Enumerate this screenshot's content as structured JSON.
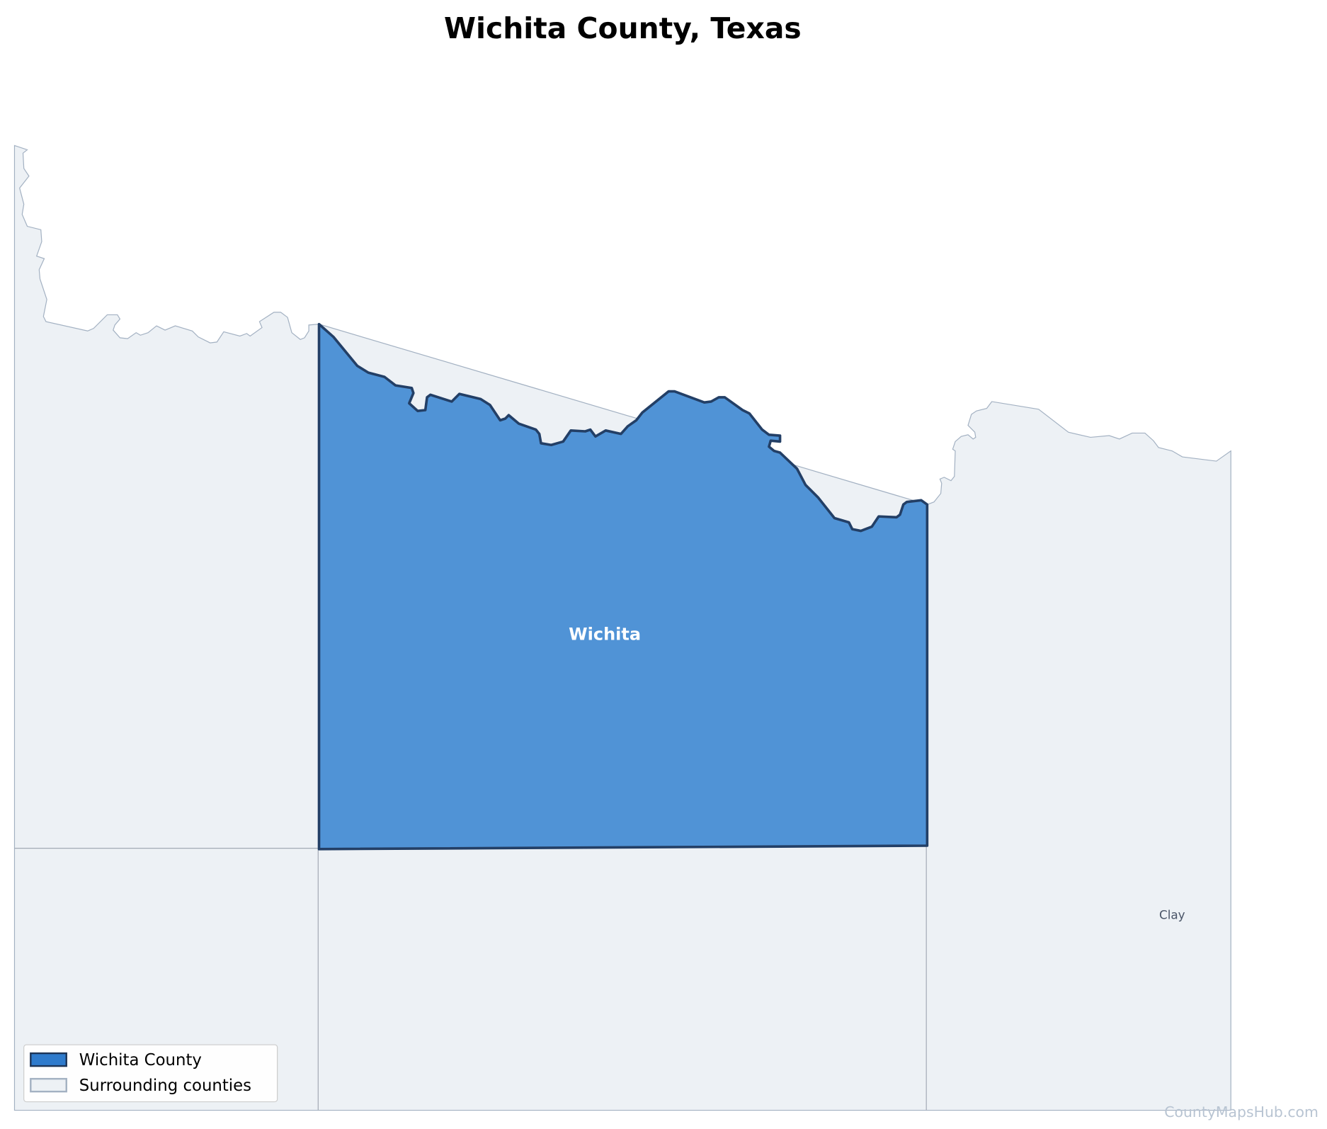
{
  "title": "Wichita County, Texas",
  "map": {
    "labels": {
      "highlighted": "Wichita",
      "neighbor": "Clay"
    }
  },
  "legend": {
    "items": [
      "Wichita County",
      "Surrounding counties"
    ]
  },
  "watermark": "CountyMapsHub.com"
}
